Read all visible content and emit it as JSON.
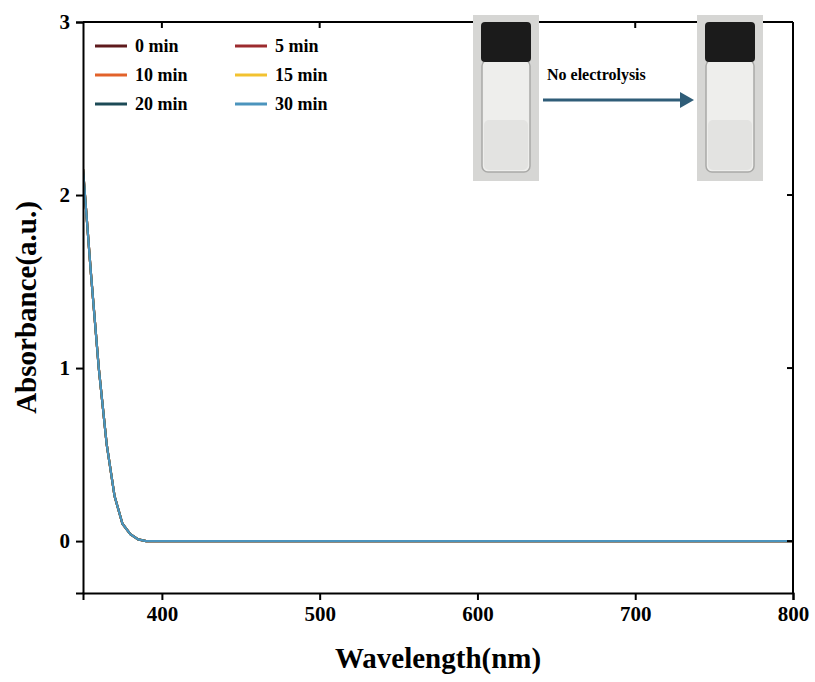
{
  "chart_data": {
    "type": "line",
    "x_label": "Wavelength(nm)",
    "y_label": "Absorbance(a.u.)",
    "annotations": [
      {
        "text": "No electrolysis"
      }
    ],
    "x": [
      350,
      355,
      360,
      365,
      370,
      375,
      380,
      385,
      390,
      395,
      400,
      450,
      500,
      550,
      600,
      650,
      700,
      750,
      800
    ],
    "series": [
      {
        "name": "0 min",
        "color": "#5e1a1d",
        "values": [
          2.15,
          1.55,
          1.0,
          0.56,
          0.26,
          0.1,
          0.04,
          0.01,
          0,
          0,
          0,
          0,
          0,
          0,
          0,
          0,
          0,
          0,
          0
        ]
      },
      {
        "name": "5 min",
        "color": "#9c2b2e",
        "values": [
          2.15,
          1.55,
          1.0,
          0.56,
          0.26,
          0.1,
          0.04,
          0.01,
          0,
          0,
          0,
          0,
          0,
          0,
          0,
          0,
          0,
          0,
          0
        ]
      },
      {
        "name": "10 min",
        "color": "#e2622a",
        "values": [
          2.15,
          1.55,
          1.0,
          0.56,
          0.26,
          0.1,
          0.04,
          0.01,
          0,
          0,
          0,
          0,
          0,
          0,
          0,
          0,
          0,
          0,
          0
        ]
      },
      {
        "name": "15 min",
        "color": "#f2c230",
        "values": [
          2.15,
          1.55,
          1.0,
          0.56,
          0.26,
          0.1,
          0.04,
          0.01,
          0,
          0,
          0,
          0,
          0,
          0,
          0,
          0,
          0,
          0,
          0
        ]
      },
      {
        "name": "20 min",
        "color": "#1c4a56",
        "values": [
          2.15,
          1.55,
          1.0,
          0.56,
          0.26,
          0.1,
          0.04,
          0.01,
          0,
          0,
          0,
          0,
          0,
          0,
          0,
          0,
          0,
          0,
          0
        ]
      },
      {
        "name": "30 min",
        "color": "#4b94bd",
        "values": [
          2.15,
          1.55,
          1.0,
          0.56,
          0.26,
          0.1,
          0.04,
          0.01,
          0,
          0,
          0,
          0,
          0,
          0,
          0,
          0,
          0,
          0,
          0
        ]
      }
    ],
    "xlim": [
      350,
      800
    ],
    "xticks": [
      400,
      500,
      600,
      700,
      800
    ],
    "ylim": [
      -0.3,
      3
    ],
    "yticks": [
      0,
      1,
      2,
      3
    ],
    "legend": "upper left",
    "grid": false
  }
}
